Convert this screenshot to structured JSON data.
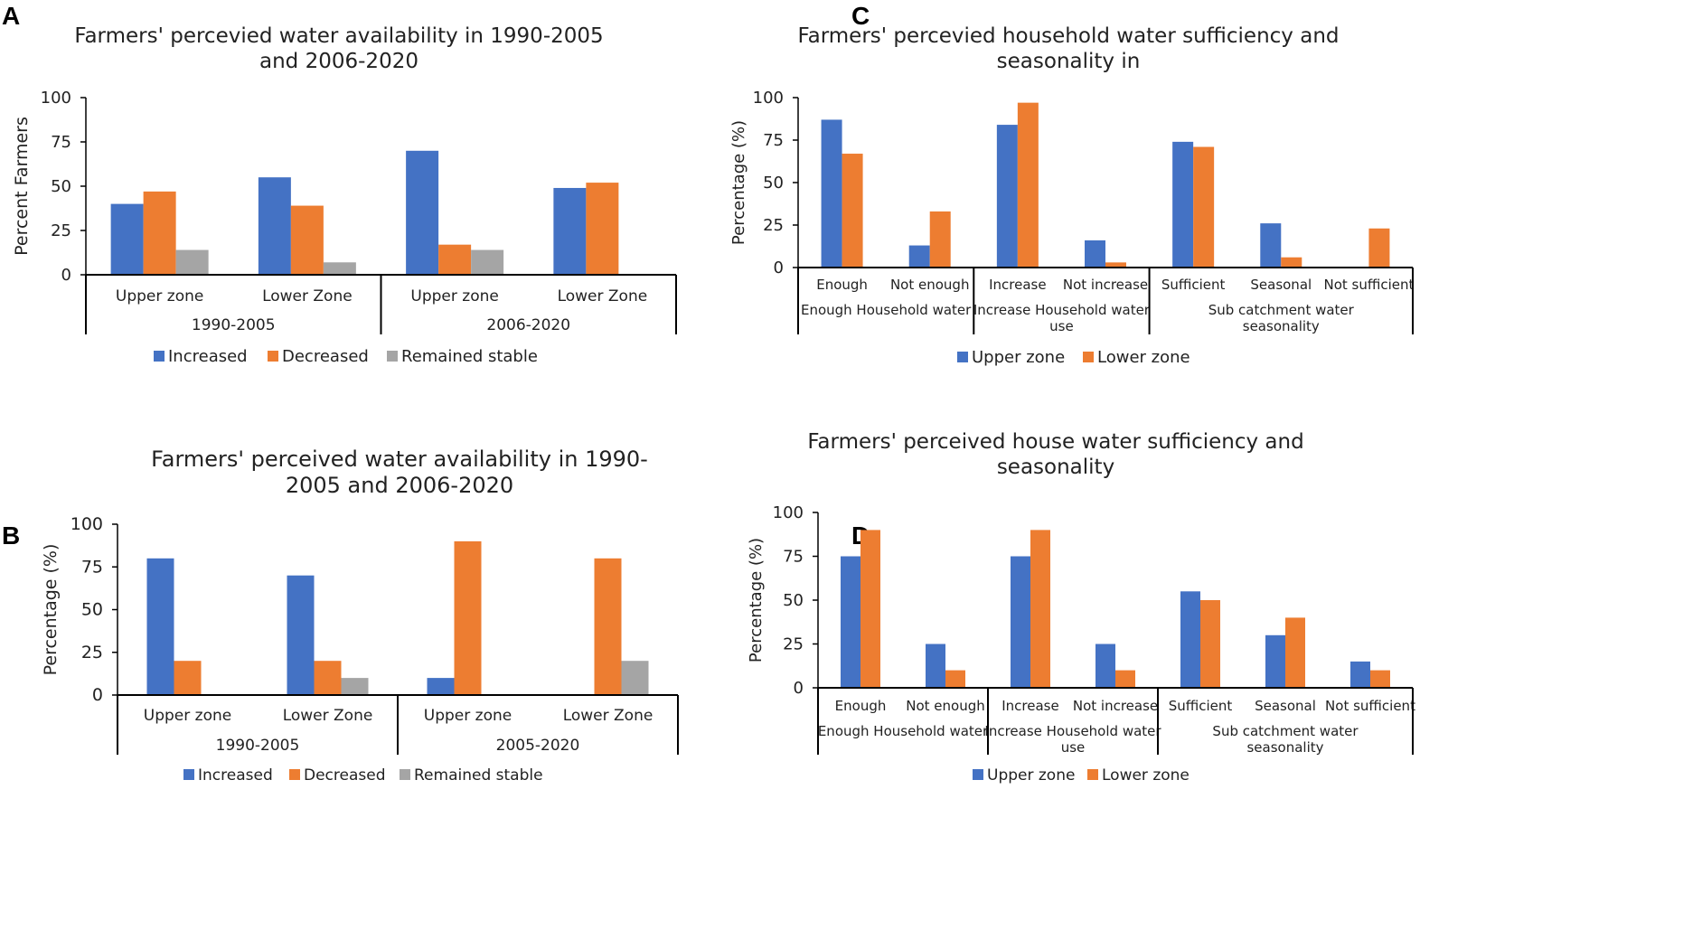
{
  "colors": {
    "increased": "#4472C4",
    "decreased": "#ED7D31",
    "stable": "#A5A5A5",
    "upper": "#4472C4",
    "lower": "#ED7D31",
    "axis": "#000000",
    "text": "#222222"
  },
  "chart_data": [
    {
      "id": "A",
      "letter": "A",
      "type": "bar",
      "title": "Farmers' percevied water availability in 1990-2005 and 2006-2020",
      "title_lines": [
        "Farmers' percevied water availability in 1990-2005",
        "and 2006-2020"
      ],
      "ylabel": "Percent Farmers",
      "ylim": [
        0,
        100
      ],
      "yticks": [
        0,
        25,
        50,
        75,
        100
      ],
      "categories": [
        "Upper zone",
        "Lower Zone",
        "Upper zone",
        "Lower Zone"
      ],
      "groups": [
        {
          "label": "1990-2005",
          "span": 2
        },
        {
          "label": "2006-2020",
          "span": 2
        }
      ],
      "series": [
        {
          "name": "Increased",
          "color_key": "increased",
          "values": [
            40,
            55,
            70,
            49
          ]
        },
        {
          "name": "Decreased",
          "color_key": "decreased",
          "values": [
            47,
            39,
            17,
            52
          ]
        },
        {
          "name": "Remained stable",
          "color_key": "stable",
          "values": [
            14,
            7,
            14,
            0
          ]
        }
      ],
      "legend": "bottom"
    },
    {
      "id": "B",
      "letter": "B",
      "type": "bar",
      "title": "Farmers' perceived water availability in 1990-2005 and 2006-2020",
      "title_lines": [
        "Farmers' perceived water availability in 1990-",
        "2005 and 2006-2020"
      ],
      "ylabel": "Percentage (%)",
      "ylim": [
        0,
        100
      ],
      "yticks": [
        0,
        25,
        50,
        75,
        100
      ],
      "categories": [
        "Upper  zone",
        "Lower Zone",
        "Upper zone",
        "Lower Zone"
      ],
      "groups": [
        {
          "label": "1990-2005",
          "span": 2
        },
        {
          "label": "2005-2020",
          "span": 2
        }
      ],
      "series": [
        {
          "name": "Increased",
          "color_key": "increased",
          "values": [
            80,
            70,
            10,
            0
          ]
        },
        {
          "name": "Decreased",
          "color_key": "decreased",
          "values": [
            20,
            20,
            90,
            80
          ]
        },
        {
          "name": "Remained stable",
          "color_key": "stable",
          "values": [
            0,
            10,
            0,
            20
          ]
        }
      ],
      "legend": "bottom"
    },
    {
      "id": "C",
      "letter": "C",
      "type": "bar",
      "title": "Farmers' percevied household water sufficiency and seasonality in",
      "title_lines": [
        "Farmers' percevied household water sufficiency and",
        "seasonality in"
      ],
      "ylabel": "Percentage (%)",
      "ylim": [
        0,
        100
      ],
      "yticks": [
        0,
        25,
        50,
        75,
        100
      ],
      "categories": [
        "Enough",
        "Not enough",
        "Increase",
        "Not increase",
        "Sufficient",
        "Seasonal",
        "Not sufficient"
      ],
      "groups": [
        {
          "label": "Enough Household water",
          "span": 2
        },
        {
          "label": "Increase Household water use",
          "span": 2
        },
        {
          "label": "Sub catchment water seasonality",
          "span": 3
        }
      ],
      "series": [
        {
          "name": "Upper zone",
          "color_key": "upper",
          "values": [
            87,
            13,
            84,
            16,
            74,
            26,
            0
          ]
        },
        {
          "name": "Lower zone",
          "color_key": "lower",
          "values": [
            67,
            33,
            97,
            3,
            71,
            6,
            23
          ]
        }
      ],
      "legend": "bottom"
    },
    {
      "id": "D",
      "letter": "D",
      "type": "bar",
      "title": "Farmers' perceived  house water sufficiency and seasonality",
      "title_lines": [
        "Farmers' perceived  house water sufficiency and",
        "seasonality"
      ],
      "ylabel": "Percentage (%)",
      "ylim": [
        0,
        100
      ],
      "yticks": [
        0,
        25,
        50,
        75,
        100
      ],
      "categories": [
        "Enough",
        "Not enough",
        "Increase",
        "Not increase",
        "Sufficient",
        "Seasonal",
        "Not sufficient"
      ],
      "groups": [
        {
          "label": "Enough Household water",
          "span": 2
        },
        {
          "label": "Increase Household water use",
          "span": 2
        },
        {
          "label": "Sub catchment water seasonality",
          "span": 3
        }
      ],
      "series": [
        {
          "name": "Upper zone",
          "color_key": "upper",
          "values": [
            75,
            25,
            75,
            25,
            55,
            30,
            15
          ]
        },
        {
          "name": "Lower zone",
          "color_key": "lower",
          "values": [
            90,
            10,
            90,
            10,
            50,
            40,
            10
          ]
        }
      ],
      "legend": "bottom"
    }
  ]
}
